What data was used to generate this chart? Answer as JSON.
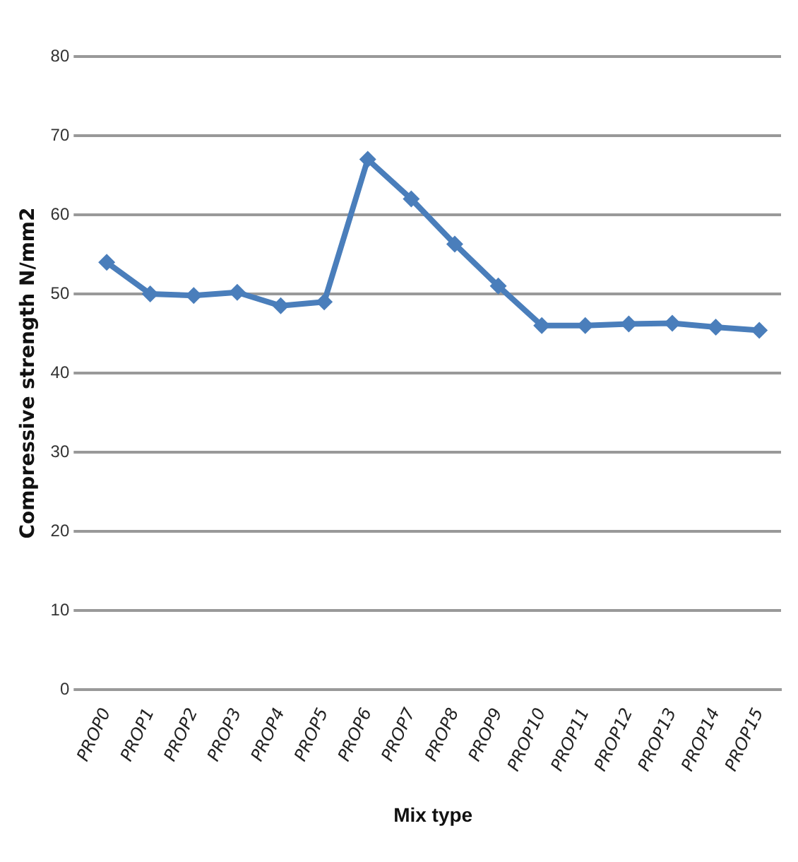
{
  "chart_data": {
    "type": "line",
    "xlabel": "Mix type",
    "ylabel": "Compressive strength N/mm2",
    "categories": [
      "PROP0",
      "PROP1",
      "PROP2",
      "PROP3",
      "PROP4",
      "PROP5",
      "PROP6",
      "PROP7",
      "PROP8",
      "PROP9",
      "PROP10",
      "PROP11",
      "PROP12",
      "PROP13",
      "PROP14",
      "PROP15"
    ],
    "series": [
      {
        "color": "#4a7ebb",
        "values": [
          54,
          50,
          49.8,
          50.2,
          48.5,
          49,
          67,
          62,
          56.3,
          51,
          46,
          46,
          46.2,
          46.3,
          45.8,
          45.4
        ]
      }
    ],
    "ylim": [
      0,
      80
    ],
    "yticks": [
      0,
      10,
      20,
      30,
      40,
      50,
      60,
      70,
      80
    ],
    "grid": "y",
    "legend": false,
    "marker": "diamond",
    "line_style": "solid"
  }
}
